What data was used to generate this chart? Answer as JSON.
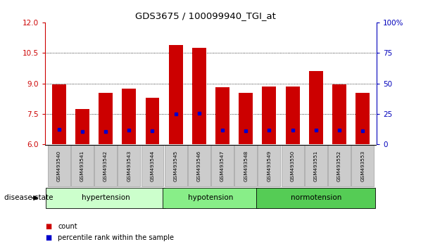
{
  "title": "GDS3675 / 100099940_TGI_at",
  "samples": [
    "GSM493540",
    "GSM493541",
    "GSM493542",
    "GSM493543",
    "GSM493544",
    "GSM493545",
    "GSM493546",
    "GSM493547",
    "GSM493548",
    "GSM493549",
    "GSM493550",
    "GSM493551",
    "GSM493552",
    "GSM493553"
  ],
  "bar_values": [
    8.95,
    7.75,
    8.55,
    8.75,
    8.3,
    10.9,
    10.75,
    8.8,
    8.55,
    8.85,
    8.85,
    9.6,
    8.95,
    8.55
  ],
  "percentile_values": [
    6.75,
    6.65,
    6.65,
    6.72,
    6.68,
    7.5,
    7.52,
    6.72,
    6.68,
    6.72,
    6.72,
    6.72,
    6.72,
    6.68
  ],
  "bar_color": "#cc0000",
  "percentile_color": "#0000cc",
  "ylim_left": [
    6,
    12
  ],
  "ylim_right": [
    0,
    100
  ],
  "yticks_left": [
    6,
    7.5,
    9,
    10.5,
    12
  ],
  "yticks_right": [
    0,
    25,
    50,
    75,
    100
  ],
  "groups": [
    {
      "label": "hypertension",
      "start": 0,
      "end": 5
    },
    {
      "label": "hypotension",
      "start": 5,
      "end": 9
    },
    {
      "label": "normotension",
      "start": 9,
      "end": 14
    }
  ],
  "group_colors": [
    "#ccffcc",
    "#88ee88",
    "#55cc55"
  ],
  "disease_state_label": "disease state",
  "legend_items": [
    {
      "label": "count",
      "color": "#cc0000"
    },
    {
      "label": "percentile rank within the sample",
      "color": "#0000cc"
    }
  ],
  "left_tick_color": "#cc0000",
  "right_tick_color": "#0000bb",
  "tick_label_bg": "#cccccc",
  "bar_width": 0.6
}
